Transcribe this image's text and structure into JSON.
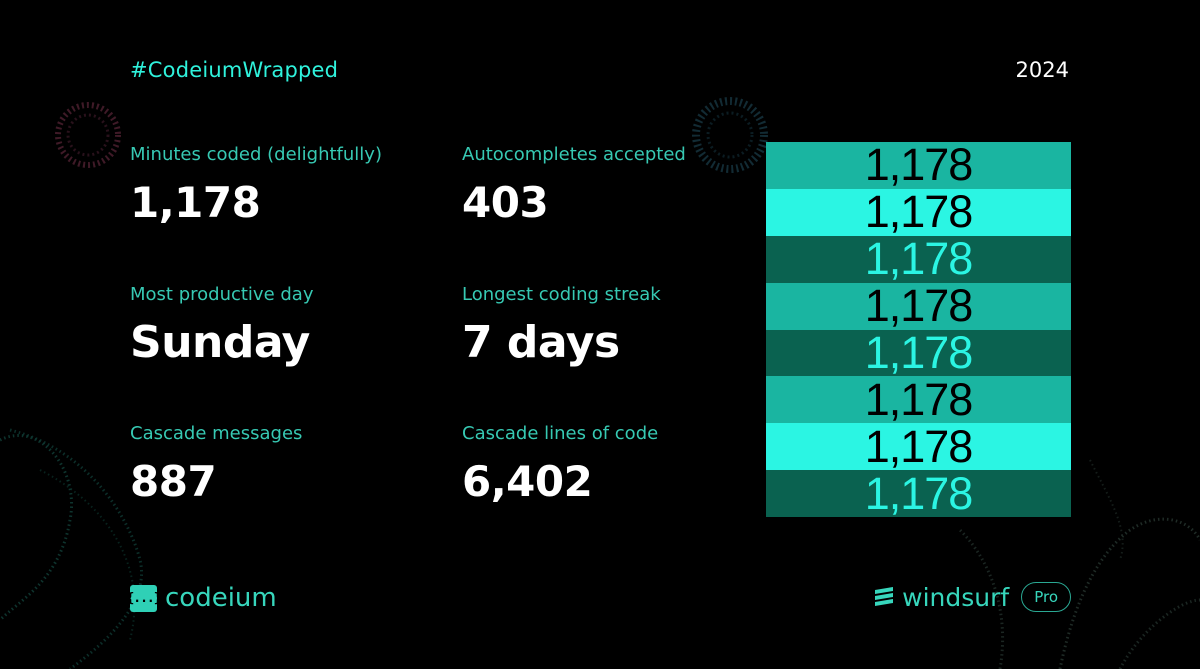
{
  "header": {
    "hashtag": "#CodeiumWrapped",
    "year": "2024"
  },
  "stats": [
    {
      "label": "Minutes coded (delightfully)",
      "value": "1,178"
    },
    {
      "label": "Autocompletes accepted",
      "value": "403"
    },
    {
      "label": "Most productive day",
      "value": "Sunday"
    },
    {
      "label": "Longest coding streak",
      "value": "7 days"
    },
    {
      "label": "Cascade messages",
      "value": "887"
    },
    {
      "label": "Cascade lines of code",
      "value": "6,402"
    }
  ],
  "highlight": {
    "bands": [
      {
        "text": "1,178",
        "bg": "#1ab5a1",
        "fg": "#000000"
      },
      {
        "text": "1,178",
        "bg": "#2bf5e3",
        "fg": "#000000"
      },
      {
        "text": "1,178",
        "bg": "#0a6250",
        "fg": "#2bf5e3"
      },
      {
        "text": "1,178",
        "bg": "#1ab5a1",
        "fg": "#000000"
      },
      {
        "text": "1,178",
        "bg": "#0a6250",
        "fg": "#2bf5e3"
      },
      {
        "text": "1,178",
        "bg": "#1ab5a1",
        "fg": "#000000"
      },
      {
        "text": "1,178",
        "bg": "#2bf5e3",
        "fg": "#000000"
      },
      {
        "text": "1,178",
        "bg": "#0a6250",
        "fg": "#2bf5e3"
      }
    ]
  },
  "footer": {
    "codeium_icon": "{...}",
    "codeium_label": "codeium",
    "windsurf_label": "windsurf",
    "plan_badge": "Pro"
  },
  "colors": {
    "background": "#000000",
    "accent": "#2ff2dc",
    "label": "#37c9b3",
    "value": "#ffffff"
  }
}
